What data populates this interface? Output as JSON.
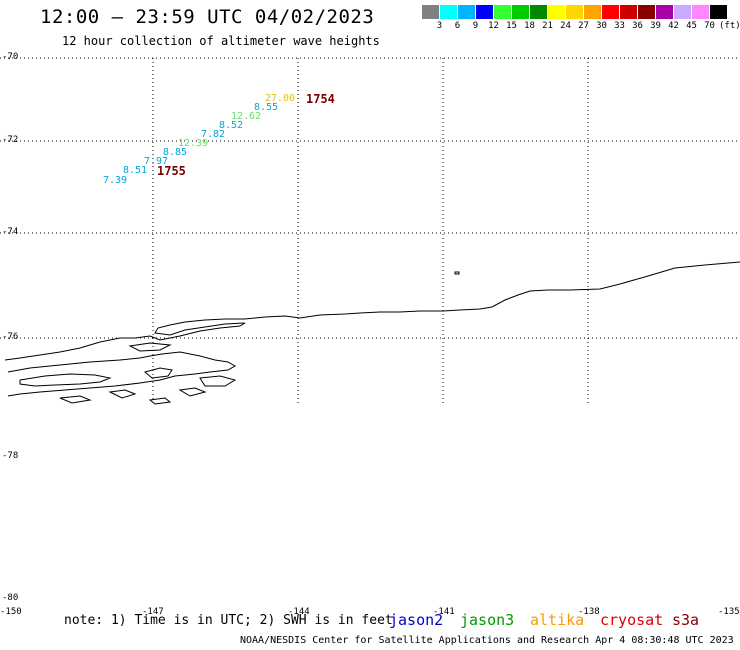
{
  "title": "12:00 – 23:59 UTC 04/02/2023",
  "subtitle": "12 hour collection of altimeter wave heights",
  "legend": {
    "unit_label": "(ft)",
    "colors": [
      "#808080",
      "#00ffff",
      "#00b4ff",
      "#0000ff",
      "#33ff33",
      "#00cc00",
      "#008800",
      "#ffff00",
      "#ffd700",
      "#ffa500",
      "#ff0000",
      "#cc0000",
      "#880000",
      "#aa00aa",
      "#ccaaff",
      "#ff88ff",
      "#000000"
    ],
    "labels": [
      "3",
      "6",
      "9",
      "12",
      "15",
      "18",
      "21",
      "24",
      "27",
      "30",
      "33",
      "36",
      "39",
      "42",
      "45",
      "70"
    ]
  },
  "lat_labels": [
    "-70",
    "-72",
    "-74",
    "-76",
    "-78",
    "-80"
  ],
  "lon_labels": [
    "-150",
    "-147",
    "-144",
    "-141",
    "-138",
    "-135"
  ],
  "wave_heights": [
    {
      "text": "27.00",
      "color": "#e6c200"
    },
    {
      "text": "8.55",
      "color": "#00a8d8"
    },
    {
      "text": "12.62",
      "color": "#66dd66"
    },
    {
      "text": "8.52",
      "color": "#00a8d8"
    },
    {
      "text": "7.82",
      "color": "#00a8d8"
    },
    {
      "text": "12.39",
      "color": "#66dd66"
    },
    {
      "text": "8.85",
      "color": "#00a8d8"
    },
    {
      "text": "7.97",
      "color": "#00a8d8"
    },
    {
      "text": "8.51",
      "color": "#00a8d8"
    },
    {
      "text": "7.39",
      "color": "#00a8d8"
    }
  ],
  "pass_times": [
    "1754",
    "1755"
  ],
  "note": "note: 1) Time is in UTC; 2) SWH is in feet",
  "satellites": [
    {
      "name": "jason2",
      "color": "#0000cc"
    },
    {
      "name": "jason3",
      "color": "#009900"
    },
    {
      "name": "altika",
      "color": "#ff9900"
    },
    {
      "name": "cryosat",
      "color": "#dd0000"
    },
    {
      "name": "s3a",
      "color": "#880000"
    }
  ],
  "credit": "NOAA/NESDIS Center for Satellite Applications and Research   Apr  4 08:30:48 UTC 2023"
}
